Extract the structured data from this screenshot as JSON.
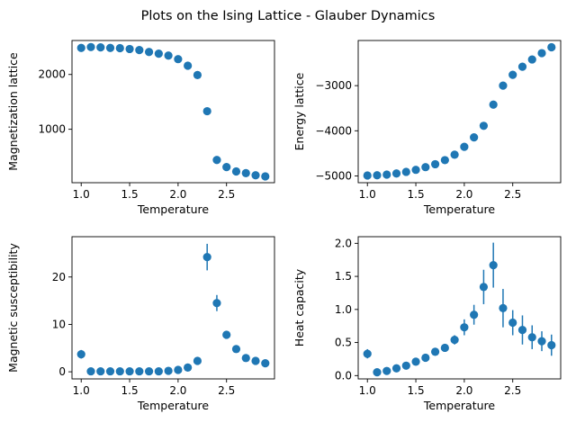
{
  "figure": {
    "title": "Plots on the Ising Lattice - Glauber Dynamics"
  },
  "chart_data": [
    {
      "type": "scatter",
      "id": "magnetization",
      "xlabel": "Temperature",
      "ylabel": "Magnetization lattice",
      "xlim": [
        0.905,
        2.995
      ],
      "ylim": [
        25,
        2620
      ],
      "xticks": [
        1.0,
        1.5,
        2.0,
        2.5
      ],
      "xtick_labels": [
        "1.0",
        "1.5",
        "2.0",
        "2.5"
      ],
      "yticks": [
        1000,
        2000
      ],
      "ytick_labels": [
        "1000",
        "2000"
      ],
      "color": "#1f77b4",
      "x": [
        1.0,
        1.1,
        1.2,
        1.3,
        1.4,
        1.5,
        1.6,
        1.7,
        1.8,
        1.9,
        2.0,
        2.1,
        2.2,
        2.3,
        2.4,
        2.5,
        2.6,
        2.7,
        2.8,
        2.9
      ],
      "y": [
        2485,
        2500,
        2495,
        2485,
        2480,
        2465,
        2445,
        2410,
        2380,
        2345,
        2280,
        2160,
        1990,
        1330,
        440,
        310,
        230,
        200,
        160,
        140
      ],
      "yerr": [
        0,
        0,
        0,
        0,
        0,
        0,
        0,
        0,
        0,
        0,
        0,
        0,
        0,
        0,
        0,
        0,
        0,
        0,
        0,
        0
      ]
    },
    {
      "type": "scatter",
      "id": "energy",
      "xlabel": "Temperature",
      "ylabel": "Energy lattice",
      "xlim": [
        0.905,
        2.995
      ],
      "ylim": [
        -5150,
        -2000
      ],
      "xticks": [
        1.0,
        1.5,
        2.0,
        2.5
      ],
      "xtick_labels": [
        "1.0",
        "1.5",
        "2.0",
        "2.5"
      ],
      "yticks": [
        -5000,
        -4000,
        -3000
      ],
      "ytick_labels": [
        "−5000",
        "−4000",
        "−3000"
      ],
      "color": "#1f77b4",
      "x": [
        1.0,
        1.1,
        1.2,
        1.3,
        1.4,
        1.5,
        1.6,
        1.7,
        1.8,
        1.9,
        2.0,
        2.1,
        2.2,
        2.3,
        2.4,
        2.5,
        2.6,
        2.7,
        2.8,
        2.9
      ],
      "y": [
        -4990,
        -4985,
        -4970,
        -4945,
        -4910,
        -4865,
        -4805,
        -4740,
        -4650,
        -4530,
        -4355,
        -4145,
        -3890,
        -3420,
        -3000,
        -2760,
        -2580,
        -2420,
        -2280,
        -2150
      ],
      "yerr": [
        0,
        0,
        0,
        0,
        0,
        0,
        0,
        0,
        0,
        0,
        0,
        0,
        0,
        0,
        0,
        0,
        0,
        0,
        0,
        0
      ]
    },
    {
      "type": "scatter",
      "id": "susceptibility",
      "xlabel": "Temperature",
      "ylabel": "Magnetic susceptibility",
      "xlim": [
        0.905,
        2.995
      ],
      "ylim": [
        -1.5,
        28.5
      ],
      "xticks": [
        1.0,
        1.5,
        2.0,
        2.5
      ],
      "xtick_labels": [
        "1.0",
        "1.5",
        "2.0",
        "2.5"
      ],
      "yticks": [
        0,
        10,
        20
      ],
      "ytick_labels": [
        "0",
        "10",
        "20"
      ],
      "color": "#1f77b4",
      "x": [
        1.0,
        1.1,
        1.2,
        1.3,
        1.4,
        1.5,
        1.6,
        1.7,
        1.8,
        1.9,
        2.0,
        2.1,
        2.2,
        2.3,
        2.4,
        2.5,
        2.6,
        2.7,
        2.8,
        2.9
      ],
      "y": [
        3.7,
        0.1,
        0.1,
        0.1,
        0.1,
        0.1,
        0.1,
        0.1,
        0.1,
        0.2,
        0.4,
        0.9,
        2.3,
        24.2,
        14.5,
        7.8,
        4.8,
        2.9,
        2.3,
        1.8
      ],
      "yerr": [
        0.9,
        0.05,
        0.05,
        0.05,
        0.05,
        0.05,
        0.05,
        0.05,
        0.05,
        0.05,
        0.1,
        0.2,
        0.4,
        2.8,
        1.7,
        0.7,
        0.4,
        0.3,
        0.2,
        0.2
      ]
    },
    {
      "type": "scatter",
      "id": "heat-capacity",
      "xlabel": "Temperature",
      "ylabel": "Heat capacity",
      "xlim": [
        0.905,
        2.995
      ],
      "ylim": [
        -0.05,
        2.1
      ],
      "xticks": [
        1.0,
        1.5,
        2.0,
        2.5
      ],
      "xtick_labels": [
        "1.0",
        "1.5",
        "2.0",
        "2.5"
      ],
      "yticks": [
        0.0,
        0.5,
        1.0,
        1.5,
        2.0
      ],
      "ytick_labels": [
        "0.0",
        "0.5",
        "1.0",
        "1.5",
        "2.0"
      ],
      "color": "#1f77b4",
      "x": [
        1.0,
        1.1,
        1.2,
        1.3,
        1.4,
        1.5,
        1.6,
        1.7,
        1.8,
        1.9,
        2.0,
        2.1,
        2.2,
        2.3,
        2.4,
        2.5,
        2.6,
        2.7,
        2.8,
        2.9
      ],
      "y": [
        0.33,
        0.05,
        0.07,
        0.11,
        0.15,
        0.21,
        0.27,
        0.36,
        0.42,
        0.54,
        0.73,
        0.92,
        1.34,
        1.67,
        1.02,
        0.8,
        0.69,
        0.58,
        0.52,
        0.46
      ],
      "yerr": [
        0.07,
        0.01,
        0.01,
        0.02,
        0.02,
        0.03,
        0.04,
        0.05,
        0.05,
        0.07,
        0.12,
        0.15,
        0.26,
        0.34,
        0.29,
        0.19,
        0.22,
        0.18,
        0.15,
        0.16
      ]
    }
  ]
}
